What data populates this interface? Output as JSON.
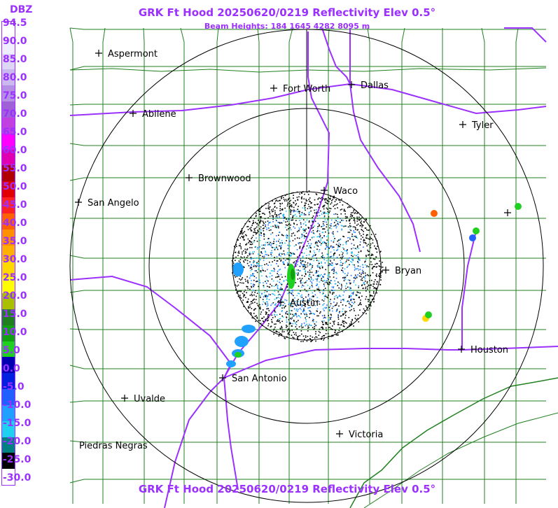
{
  "legend": {
    "title": "DBZ",
    "labels": [
      "94.5",
      "90.0",
      "85.0",
      "80.0",
      "75.0",
      "70.0",
      "65.0",
      "60.0",
      "55.0",
      "50.0",
      "45.0",
      "40.0",
      "35.0",
      "30.0",
      "25.0",
      "20.0",
      "15.0",
      "10.0",
      "5.0",
      "0.0",
      "-5.0",
      "-10.0",
      "-15.0",
      "-20.0",
      "-25.0",
      "-30.0"
    ],
    "colors": [
      "#ffffff",
      "#eeeeff",
      "#ddd6f5",
      "#c9b9ee",
      "#b58ee6",
      "#a060d8",
      "#c040e0",
      "#ff00ff",
      "#e000b0",
      "#b00000",
      "#e00000",
      "#ff2020",
      "#ff6000",
      "#ff9000",
      "#ffb000",
      "#ffd800",
      "#ffff00",
      "#a8c000",
      "#208020",
      "#10a010",
      "#20d020",
      "#0000b0",
      "#0020e0",
      "#2060ff",
      "#20a0ff",
      "#20d0f0",
      "#008080",
      "#000000",
      "#ffffff"
    ]
  },
  "header": {
    "title": "GRK Ft Hood 20250620/0219 Reflectivity Elev 0.5°",
    "beam_heights": "Beam Heights: 184 1645 4282 8095 m"
  },
  "footer": {
    "title": "GRK Ft Hood 20250620/0219 Reflectivity Elev 0.5°"
  },
  "map": {
    "radar_site": "GRK",
    "cities": [
      {
        "name": "Aspermont"
      },
      {
        "name": "Abilene"
      },
      {
        "name": "Fort Worth"
      },
      {
        "name": "Dallas"
      },
      {
        "name": "Tyler"
      },
      {
        "name": "Brownwood"
      },
      {
        "name": "Waco"
      },
      {
        "name": "San Angelo"
      },
      {
        "name": "Bryan"
      },
      {
        "name": "Austin"
      },
      {
        "name": "Houston"
      },
      {
        "name": "San Antonio"
      },
      {
        "name": "Uvalde"
      },
      {
        "name": "Victoria"
      },
      {
        "name": "Piedras Negras"
      }
    ],
    "colors": {
      "counties": "#208020",
      "interstates": "#9b30ff",
      "rings": "#000000"
    }
  }
}
